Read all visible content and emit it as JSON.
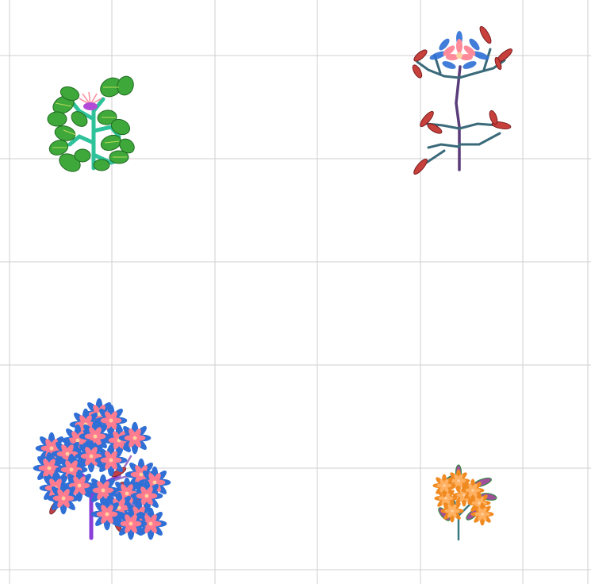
{
  "canvas": {
    "background": "#ffffff",
    "grid_color": "#cfcfcf"
  },
  "plants": [
    {
      "id": "plant-1",
      "kind": "leafy-bush",
      "leaf_color": "#3fa83a",
      "stem_color": "#2ec29a",
      "flower_color": "#b24bd8"
    },
    {
      "id": "plant-2",
      "kind": "tall-flower",
      "stem_color": "#5a3c7a",
      "leaf_color": "#c8403c",
      "flower_color": "#ff8a9a",
      "petal_tip_color": "#2f6fd6"
    },
    {
      "id": "plant-3",
      "kind": "flowering-tree",
      "trunk_color": "#8a3fd8",
      "flower_color": "#ff7b8f",
      "petal_tip_color": "#2f6fd6"
    },
    {
      "id": "plant-4",
      "kind": "small-shrub",
      "flower_color": "#f08a20",
      "leaf_color": "#a0509a",
      "stem_color": "#3a7a80"
    }
  ]
}
